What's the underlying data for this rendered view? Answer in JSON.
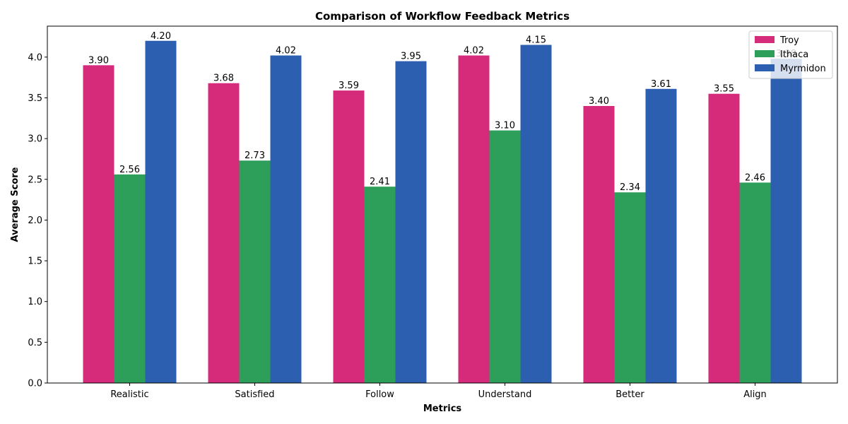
{
  "chart_data": {
    "type": "bar",
    "title": "Comparison of Workflow Feedback Metrics",
    "xlabel": "Metrics",
    "ylabel": "Average Score",
    "categories": [
      "Realistic",
      "Satisfied",
      "Follow",
      "Understand",
      "Better",
      "Align"
    ],
    "series": [
      {
        "name": "Troy",
        "color": "#d62a7a",
        "values": [
          3.9,
          3.68,
          3.59,
          4.02,
          3.4,
          3.55
        ]
      },
      {
        "name": "Ithaca",
        "color": "#2e9e5b",
        "values": [
          2.56,
          2.73,
          2.41,
          3.1,
          2.34,
          2.46
        ]
      },
      {
        "name": "Myrmidon",
        "color": "#2d5fb0",
        "values": [
          4.2,
          4.02,
          3.95,
          4.15,
          3.61,
          3.98
        ]
      }
    ],
    "ylim": [
      0,
      4.38
    ],
    "yticks": [
      "0.0",
      "0.5",
      "1.0",
      "1.5",
      "2.0",
      "2.5",
      "3.0",
      "3.5",
      "4.0"
    ],
    "data_labels": true,
    "grid": false,
    "legend_position": "top-right"
  }
}
